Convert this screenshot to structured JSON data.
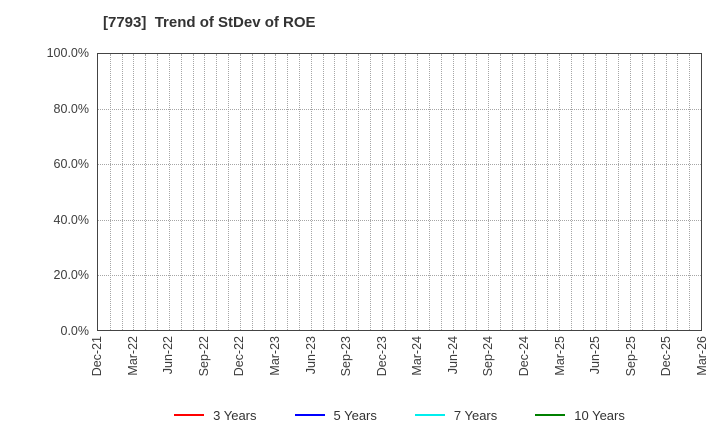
{
  "chart": {
    "title": "[7793]  Trend of StDev of ROE",
    "plot": {
      "border_color": "#444444",
      "gridline_color": "#a6a6a6",
      "months_total": 51,
      "x_label_every_months": 3
    },
    "y_axis": {
      "ticks": [
        "100.0%",
        "80.0%",
        "60.0%",
        "40.0%",
        "20.0%",
        "0.0%"
      ],
      "tick_values": [
        100,
        80,
        60,
        40,
        20,
        0
      ]
    },
    "x_axis": {
      "ticks": [
        "Dec-21",
        "Mar-22",
        "Jun-22",
        "Sep-22",
        "Dec-22",
        "Mar-23",
        "Jun-23",
        "Sep-23",
        "Dec-23",
        "Mar-24",
        "Jun-24",
        "Sep-24",
        "Dec-24",
        "Mar-25",
        "Jun-25",
        "Sep-25",
        "Dec-25",
        "Mar-26"
      ]
    },
    "legend": [
      {
        "label": "3 Years",
        "color": "#ff0000"
      },
      {
        "label": "5 Years",
        "color": "#0000ff"
      },
      {
        "label": "7 Years",
        "color": "#00eeee"
      },
      {
        "label": "10 Years",
        "color": "#008000"
      }
    ]
  },
  "chart_data": {
    "type": "line",
    "title": "[7793]  Trend of StDev of ROE",
    "categories": [
      "Dec-21",
      "Mar-22",
      "Jun-22",
      "Sep-22",
      "Dec-22",
      "Mar-23",
      "Jun-23",
      "Sep-23",
      "Dec-23",
      "Mar-24",
      "Jun-24",
      "Sep-24",
      "Dec-24",
      "Mar-25",
      "Jun-25",
      "Sep-25",
      "Dec-25",
      "Mar-26"
    ],
    "series": [
      {
        "name": "3 Years",
        "color": "#ff0000",
        "values": []
      },
      {
        "name": "5 Years",
        "color": "#0000ff",
        "values": []
      },
      {
        "name": "7 Years",
        "color": "#00eeee",
        "values": []
      },
      {
        "name": "10 Years",
        "color": "#008000",
        "values": []
      }
    ],
    "xlabel": "",
    "ylabel": "",
    "ylim": [
      0,
      100
    ],
    "yticks_percent": [
      0,
      20,
      40,
      60,
      80,
      100
    ],
    "grid": true,
    "legend_position": "bottom"
  }
}
